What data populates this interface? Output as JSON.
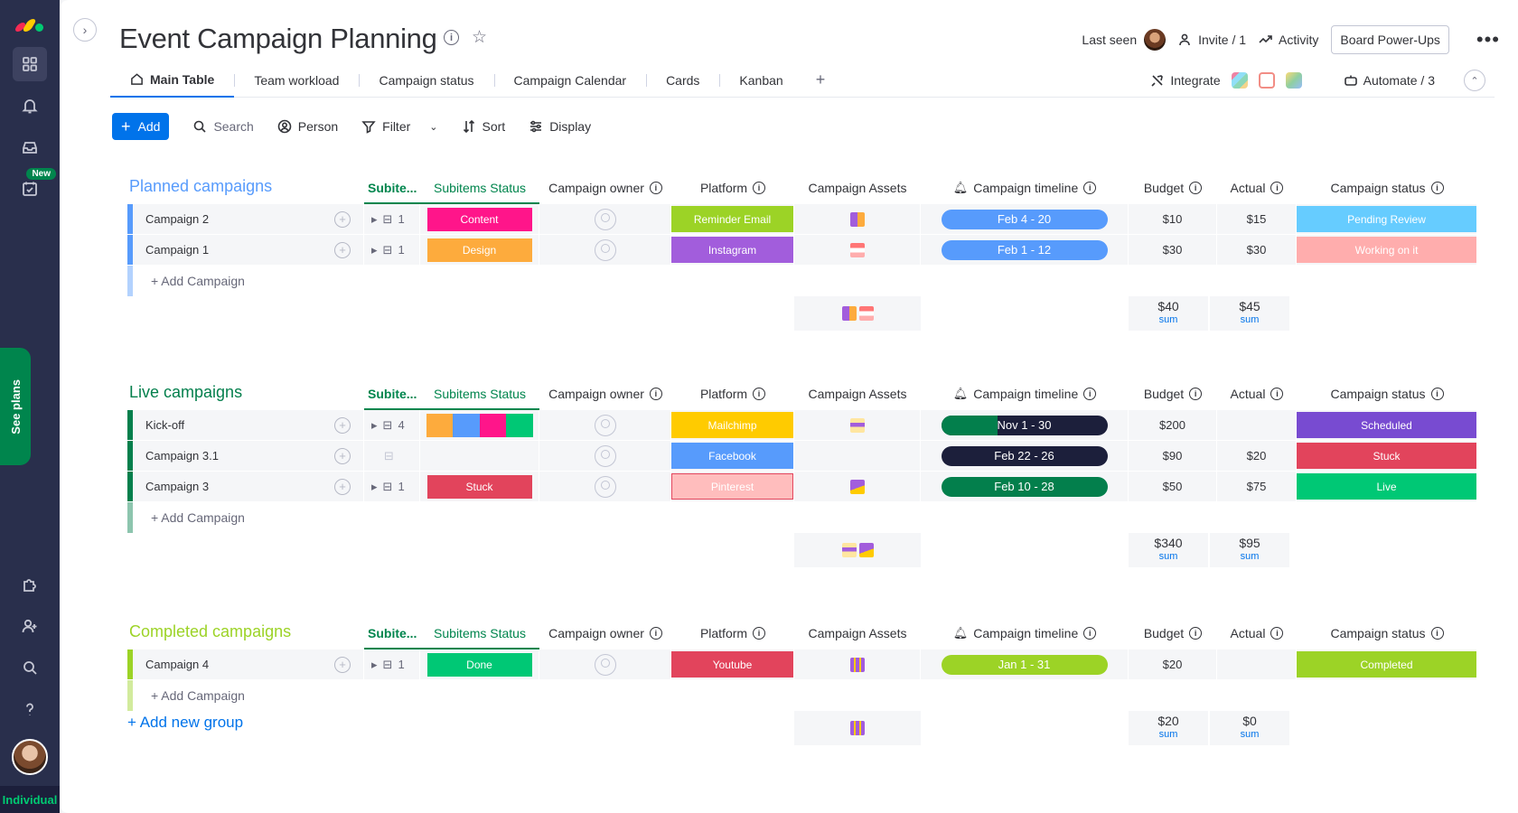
{
  "rail": {
    "new_badge": "New",
    "see_plans": "See plans",
    "plan": "Individual"
  },
  "board": {
    "title": "Event Campaign Planning",
    "last_seen": "Last seen",
    "invite": "Invite / 1",
    "activity": "Activity",
    "power_ups": "Board Power-Ups",
    "more": "•••"
  },
  "tabs": [
    "Main Table",
    "Team workload",
    "Campaign status",
    "Campaign Calendar",
    "Cards",
    "Kanban"
  ],
  "tab_add": "+",
  "integrate": "Integrate",
  "automate": "Automate / 3",
  "toolbar": {
    "add": "Add",
    "search": "Search",
    "person": "Person",
    "filter": "Filter",
    "sort": "Sort",
    "display": "Display"
  },
  "columns": {
    "subitems": "Subite...",
    "subitems_status": "Subitems Status",
    "owner": "Campaign owner",
    "platform": "Platform",
    "assets": "Campaign Assets",
    "timeline": "Campaign timeline",
    "budget": "Budget",
    "actual": "Actual",
    "status": "Campaign status"
  },
  "groups": [
    {
      "title": "Planned campaigns",
      "color": "#579bfc",
      "add_label": "+ Add Campaign",
      "rows": [
        {
          "name": "Campaign 2",
          "subcount": "1",
          "sub_status": "Content",
          "sub_color": "#ff158a",
          "platform": "Reminder Email",
          "platform_color": "#9cd326",
          "asset_a": "#a25ddc",
          "asset_b": "#fdab3d",
          "timeline": "Feb 4 - 20",
          "tl_color": "#579bfc",
          "budget": "$10",
          "actual": "$15",
          "status": "Pending Review",
          "status_color": "#66ccff"
        },
        {
          "name": "Campaign 1",
          "subcount": "1",
          "sub_status": "Design",
          "sub_color": "#fdab3d",
          "platform": "Instagram",
          "platform_color": "#a25ddc",
          "asset_a": "#ff7575",
          "asset_b": "#ffadad",
          "timeline": "Feb 1 - 12",
          "tl_color": "#579bfc",
          "budget": "$30",
          "actual": "$30",
          "status": "Working on it",
          "status_color": "#ffadad"
        }
      ],
      "sum_budget": "$40",
      "sum_actual": "$45",
      "sum_label": "sum"
    },
    {
      "title": "Live campaigns",
      "color": "#037f4c",
      "add_label": "+ Add Campaign",
      "rows": [
        {
          "name": "Kick-off",
          "subcount": "4",
          "sub_multi": [
            "#fdab3d",
            "#579bfc",
            "#ff158a",
            "#00c875"
          ],
          "platform": "Mailchimp",
          "platform_color": "#ffcb00",
          "asset_a": "#ffcb00",
          "asset_b": "#a25ddc",
          "timeline": "Nov 1 - 30",
          "tl_color": "#1c1f3b",
          "budget": "$200",
          "actual": "",
          "status": "Scheduled",
          "status_color": "#784bd1"
        },
        {
          "name": "Campaign 3.1",
          "subcount": "",
          "platform": "Facebook",
          "platform_color": "#579bfc",
          "timeline": "Feb 22 - 26",
          "tl_color": "#1c1f3b",
          "budget": "$90",
          "actual": "$20",
          "status": "Stuck",
          "status_color": "#e2445c"
        },
        {
          "name": "Campaign 3",
          "subcount": "1",
          "sub_status": "Stuck",
          "sub_color": "#e2445c",
          "platform": "Pinterest",
          "platform_color": "#ffbdbd",
          "asset_a": "#a25ddc",
          "asset_b": "#ffcb00",
          "timeline": "Feb 10 - 28",
          "tl_color": "#037f4c",
          "budget": "$50",
          "actual": "$75",
          "status": "Live",
          "status_color": "#00c875"
        }
      ],
      "sum_budget": "$340",
      "sum_actual": "$95",
      "sum_label": "sum"
    },
    {
      "title": "Completed campaigns",
      "color": "#9cd326",
      "add_label": "+ Add Campaign",
      "rows": [
        {
          "name": "Campaign 4",
          "subcount": "1",
          "sub_status": "Done",
          "sub_color": "#00c875",
          "platform": "Youtube",
          "platform_color": "#e2445c",
          "asset_a": "#a25ddc",
          "asset_b": "#ffcb00",
          "timeline": "Jan 1 - 31",
          "tl_color": "#9cd326",
          "budget": "$20",
          "actual": "",
          "status": "Completed",
          "status_color": "#9cd326"
        }
      ],
      "sum_budget": "$20",
      "sum_actual": "$0",
      "sum_label": "sum"
    }
  ],
  "add_group": "+ Add new group"
}
